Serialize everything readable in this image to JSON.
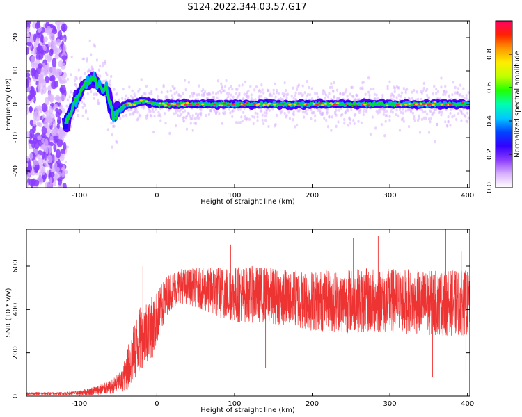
{
  "title": "S124.2022.344.03.57.G17",
  "colors": {
    "snr_line": "#ee3333",
    "ridge_core": "#ff2a2a",
    "ridge_mid": "#00dd33",
    "ridge_edge": "#1a00ff",
    "scatter": "#8a3cff"
  },
  "chart_data": [
    {
      "type": "heatmap",
      "xlabel": "Height of straight line (km)",
      "ylabel": "Frequency (Hz)",
      "xlim": [
        -168,
        403
      ],
      "ylim": [
        -25,
        25
      ],
      "xticks": [
        {
          "v": -100,
          "label": "-100"
        },
        {
          "v": 0,
          "label": "0"
        },
        {
          "v": 100,
          "label": "100"
        },
        {
          "v": 200,
          "label": "200"
        },
        {
          "v": 300,
          "label": "300"
        },
        {
          "v": 400,
          "label": "400"
        }
      ],
      "yticks": [
        {
          "v": -20,
          "label": "-20"
        },
        {
          "v": -10,
          "label": "-10"
        },
        {
          "v": 0,
          "label": "0"
        },
        {
          "v": 10,
          "label": "10"
        },
        {
          "v": 20,
          "label": "20"
        }
      ],
      "ridge_path": [
        [
          -118,
          -6
        ],
        [
          -112,
          -3
        ],
        [
          -105,
          1
        ],
        [
          -100,
          3
        ],
        [
          -95,
          5
        ],
        [
          -88,
          7
        ],
        [
          -82,
          8
        ],
        [
          -76,
          6
        ],
        [
          -70,
          4
        ],
        [
          -65,
          5
        ],
        [
          -60,
          0
        ],
        [
          -56,
          -4
        ],
        [
          -50,
          -2
        ],
        [
          -45,
          -1
        ],
        [
          -40,
          0
        ],
        [
          -30,
          0
        ],
        [
          -20,
          1
        ],
        [
          0,
          0
        ],
        [
          50,
          0
        ],
        [
          100,
          0
        ],
        [
          150,
          0
        ],
        [
          200,
          0
        ],
        [
          250,
          0
        ],
        [
          300,
          0
        ],
        [
          350,
          0
        ],
        [
          403,
          0
        ]
      ],
      "colorbar": {
        "label": "Normalized spectral amplitude",
        "range": [
          0.0,
          1.0
        ],
        "ticks": [
          {
            "v": 0.0,
            "label": "0.0"
          },
          {
            "v": 0.2,
            "label": "0.2"
          },
          {
            "v": 0.4,
            "label": "0.4"
          },
          {
            "v": 0.6,
            "label": "0.6"
          },
          {
            "v": 0.8,
            "label": "0.8"
          }
        ],
        "colors": [
          "#ffffff",
          "#d8b0ff",
          "#8a3cff",
          "#3300ff",
          "#0044ff",
          "#00c8ff",
          "#00ffb0",
          "#22ff00",
          "#c0ff00",
          "#ffee00",
          "#ff9900",
          "#ff2200",
          "#ff0066"
        ]
      }
    },
    {
      "type": "line",
      "xlabel": "Height of straight line (km)",
      "ylabel": "SNR (10 * v/v)",
      "xlim": [
        -168,
        403
      ],
      "ylim": [
        0,
        770
      ],
      "xticks": [
        {
          "v": -100,
          "label": "-100"
        },
        {
          "v": 0,
          "label": "0"
        },
        {
          "v": 100,
          "label": "100"
        },
        {
          "v": 200,
          "label": "200"
        },
        {
          "v": 300,
          "label": "300"
        },
        {
          "v": 400,
          "label": "400"
        }
      ],
      "yticks": [
        {
          "v": 0,
          "label": "0"
        },
        {
          "v": 200,
          "label": "200"
        },
        {
          "v": 400,
          "label": "400"
        },
        {
          "v": 600,
          "label": "600"
        }
      ],
      "envelope": {
        "x": [
          -168,
          -120,
          -100,
          -80,
          -60,
          -45,
          -35,
          -25,
          -15,
          -5,
          5,
          15,
          30,
          50,
          80,
          100,
          130,
          160,
          200,
          250,
          300,
          350,
          403
        ],
        "mean": [
          12,
          12,
          15,
          25,
          40,
          70,
          150,
          240,
          300,
          320,
          400,
          480,
          510,
          500,
          480,
          470,
          470,
          460,
          440,
          440,
          440,
          430,
          430
        ],
        "spread": [
          6,
          6,
          10,
          20,
          30,
          50,
          120,
          150,
          150,
          140,
          110,
          90,
          80,
          90,
          120,
          130,
          130,
          130,
          140,
          150,
          150,
          150,
          150
        ]
      },
      "peaks": [
        {
          "x": -18,
          "y": 600
        },
        {
          "x": 95,
          "y": 700
        },
        {
          "x": 285,
          "y": 740
        },
        {
          "x": 372,
          "y": 780
        },
        {
          "x": 253,
          "y": 730
        },
        {
          "x": 392,
          "y": 670
        }
      ],
      "troughs": [
        {
          "x": 140,
          "y": 130
        },
        {
          "x": 355,
          "y": 90
        },
        {
          "x": 398,
          "y": 110
        }
      ]
    }
  ]
}
